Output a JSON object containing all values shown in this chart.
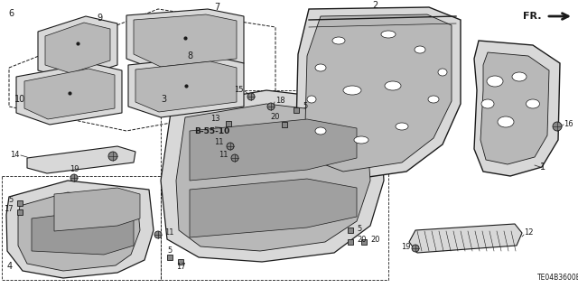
{
  "bg_color": "#ffffff",
  "line_color": "#1a1a1a",
  "gray_light": "#d8d8d8",
  "gray_mid": "#b8b8b8",
  "gray_dark": "#888888",
  "title_code": "TE04B3600B"
}
